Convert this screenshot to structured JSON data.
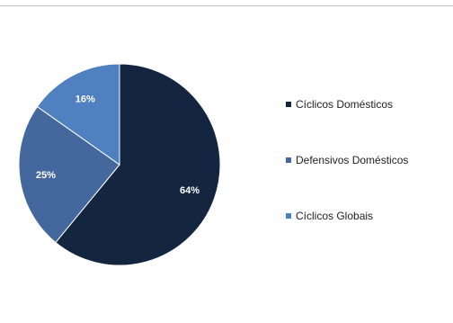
{
  "chart_data": {
    "type": "pie",
    "categories": [
      "Cíclicos Domésticos",
      "Defensivos Domésticos",
      "Cíclicos Globais"
    ],
    "values": [
      64,
      25,
      16
    ],
    "labels": [
      "64%",
      "25%",
      "16%"
    ],
    "colors": [
      "#142540",
      "#44689d",
      "#4f80c0"
    ],
    "legend_position": "right"
  }
}
